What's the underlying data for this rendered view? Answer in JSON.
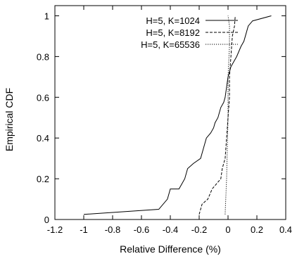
{
  "chart_data": {
    "type": "line",
    "title": "",
    "xlabel": "Relative Difference (%)",
    "ylabel": "Empirical CDF",
    "xlim": [
      -1.2,
      0.4
    ],
    "ylim": [
      0,
      1.05
    ],
    "xticks": [
      -1.2,
      -1,
      -0.8,
      -0.6,
      -0.4,
      -0.2,
      0,
      0.2,
      0.4
    ],
    "xtick_labels": [
      "-1.2",
      "-1",
      "-0.8",
      "-0.6",
      "-0.4",
      "-0.2",
      "0",
      "0.2",
      "0.4"
    ],
    "yticks": [
      0,
      0.2,
      0.4,
      0.6,
      0.8,
      1
    ],
    "ytick_labels": [
      "0",
      "0.2",
      "0.4",
      "0.6",
      "0.8",
      "1"
    ],
    "grid": false,
    "legend_position": "top-right",
    "series": [
      {
        "name": "H=5, K=1024",
        "dash": "solid",
        "points": [
          [
            -1.0,
            0.025
          ],
          [
            -0.48,
            0.05
          ],
          [
            -0.42,
            0.1
          ],
          [
            -0.4,
            0.15
          ],
          [
            -0.34,
            0.15
          ],
          [
            -0.32,
            0.175
          ],
          [
            -0.3,
            0.2
          ],
          [
            -0.28,
            0.25
          ],
          [
            -0.24,
            0.275
          ],
          [
            -0.19,
            0.3
          ],
          [
            -0.17,
            0.35
          ],
          [
            -0.15,
            0.4
          ],
          [
            -0.12,
            0.425
          ],
          [
            -0.1,
            0.45
          ],
          [
            -0.09,
            0.475
          ],
          [
            -0.07,
            0.5
          ],
          [
            -0.06,
            0.525
          ],
          [
            -0.05,
            0.55
          ],
          [
            -0.03,
            0.575
          ],
          [
            -0.02,
            0.6
          ],
          [
            -0.01,
            0.65
          ],
          [
            0.0,
            0.7
          ],
          [
            0.02,
            0.75
          ],
          [
            0.04,
            0.775
          ],
          [
            0.06,
            0.8
          ],
          [
            0.09,
            0.85
          ],
          [
            0.11,
            0.875
          ],
          [
            0.12,
            0.9
          ],
          [
            0.13,
            0.925
          ],
          [
            0.14,
            0.95
          ],
          [
            0.17,
            0.975
          ],
          [
            0.3,
            1.0
          ]
        ]
      },
      {
        "name": "H=5, K=8192",
        "dash": "dashed",
        "points": [
          [
            -0.2,
            0.025
          ],
          [
            -0.18,
            0.075
          ],
          [
            -0.14,
            0.1
          ],
          [
            -0.11,
            0.15
          ],
          [
            -0.08,
            0.175
          ],
          [
            -0.05,
            0.2
          ],
          [
            -0.04,
            0.25
          ],
          [
            -0.02,
            0.3
          ],
          [
            -0.01,
            0.4
          ],
          [
            0.0,
            0.5
          ],
          [
            0.01,
            0.6
          ],
          [
            0.01,
            0.7
          ],
          [
            0.02,
            0.8
          ],
          [
            0.03,
            0.9
          ],
          [
            0.045,
            0.95
          ],
          [
            0.05,
            1.0
          ]
        ]
      },
      {
        "name": "H=5, K=65536",
        "dash": "dotted",
        "points": [
          [
            -0.02,
            0.025
          ],
          [
            -0.01,
            0.2
          ],
          [
            0.0,
            0.5
          ],
          [
            0.0,
            0.7
          ],
          [
            0.01,
            0.85
          ],
          [
            0.01,
            0.95
          ],
          [
            0.0,
            1.0
          ]
        ]
      }
    ]
  }
}
